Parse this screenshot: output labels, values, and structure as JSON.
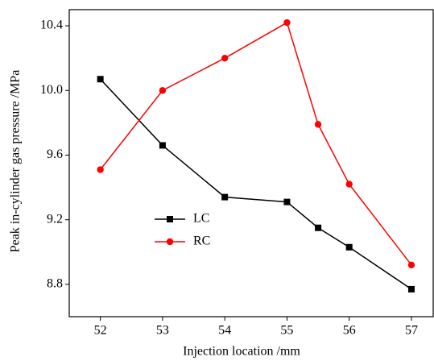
{
  "chart_data": {
    "type": "line",
    "x_label": "Injection location /mm",
    "y_label": "Peak in-cylinder gas pressure  /MPa",
    "x": [
      52,
      53,
      54,
      55,
      55.5,
      56,
      57
    ],
    "series": [
      {
        "name": "LC",
        "color": "#000000",
        "marker": "square",
        "values": [
          10.07,
          9.66,
          9.34,
          9.31,
          9.15,
          9.03,
          8.77
        ]
      },
      {
        "name": "RC",
        "color": "#ff0000",
        "marker": "circle",
        "values": [
          9.51,
          10.0,
          10.2,
          10.42,
          9.79,
          9.42,
          8.92
        ]
      }
    ],
    "xlim": [
      51.5,
      57.35
    ],
    "xticks": [
      52,
      53,
      54,
      55,
      56,
      57
    ],
    "ylim": [
      8.6,
      10.5
    ],
    "yticks": [
      8.8,
      9.2,
      9.6,
      {
        "value": 10.0,
        "label": "10.0"
      },
      10.4
    ],
    "grid": false,
    "legend": "left"
  }
}
